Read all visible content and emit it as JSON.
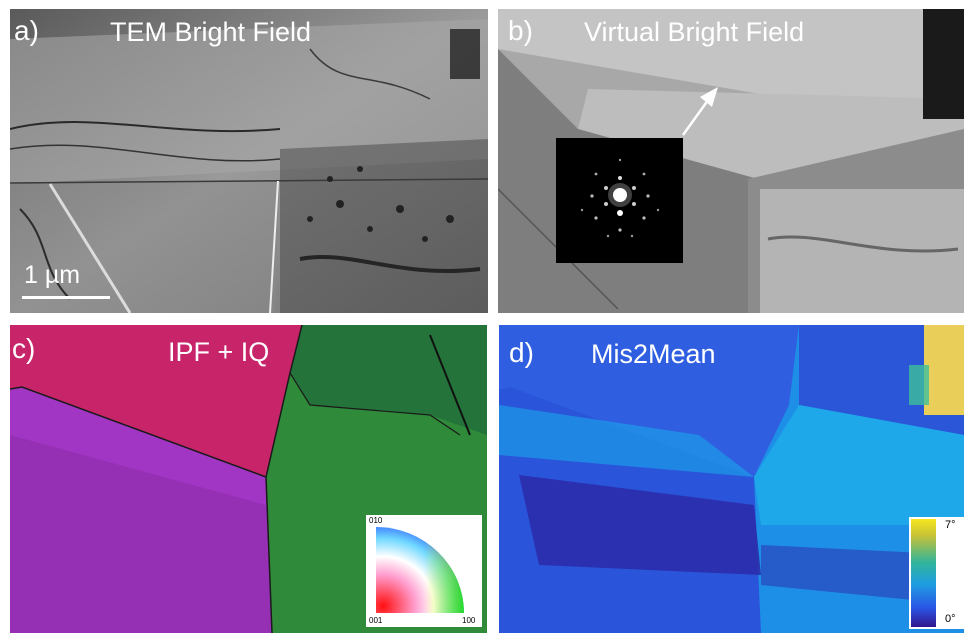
{
  "panels": {
    "a": {
      "label": "a)",
      "title": "TEM Bright Field",
      "scale_bar": "1 µm"
    },
    "b": {
      "label": "b)",
      "title": "Virtual Bright Field"
    },
    "c": {
      "label": "c)",
      "title": "IPF + IQ",
      "ipf_key": {
        "top": "010",
        "bottom_left": "001",
        "bottom_right": "100"
      }
    },
    "d": {
      "label": "d)",
      "title": "Mis2Mean",
      "colorbar": {
        "max": "7°",
        "min": "0°"
      }
    }
  },
  "colors": {
    "ipf_red": "#c8246a",
    "ipf_purple": "#a236c4",
    "ipf_green": "#2f8a3a",
    "mis_blue": "#2f5fe0",
    "mis_cyan": "#1c9be8",
    "mis_navy": "#2c2aa8",
    "mis_yellow": "#e9cf5a"
  }
}
